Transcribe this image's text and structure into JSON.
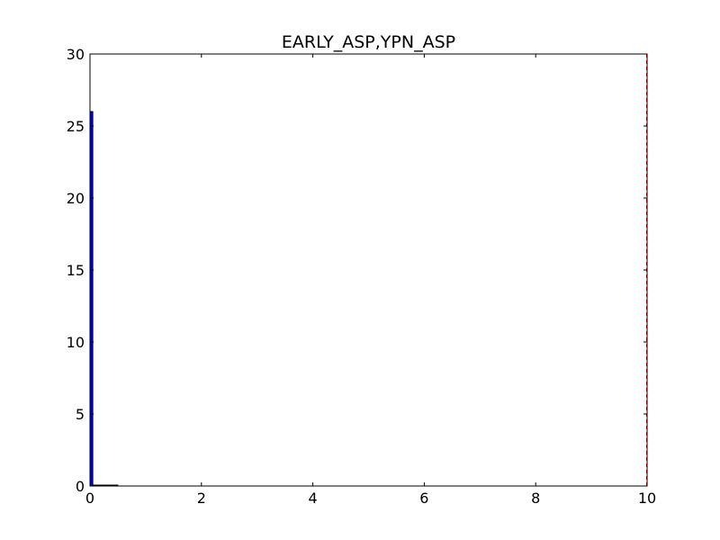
{
  "chart_data": {
    "type": "bar",
    "title": "EARLY_ASP,YPN_ASP",
    "xlabel": "",
    "ylabel": "",
    "xlim": [
      0,
      10
    ],
    "ylim": [
      0,
      30
    ],
    "x_ticks": [
      0,
      2,
      4,
      6,
      8,
      10
    ],
    "y_ticks": [
      0,
      5,
      10,
      15,
      20,
      25,
      30
    ],
    "grid": false,
    "bar_color": "#0000ff",
    "bar_edge_color": "#000000",
    "bins": [
      {
        "start": 0.0,
        "end": 0.05,
        "count": 26
      },
      {
        "start": 0.05,
        "end": 0.5,
        "count": 0
      }
    ],
    "reference_line": {
      "x": 10,
      "color": "#ff0000",
      "style": "dashed"
    }
  }
}
